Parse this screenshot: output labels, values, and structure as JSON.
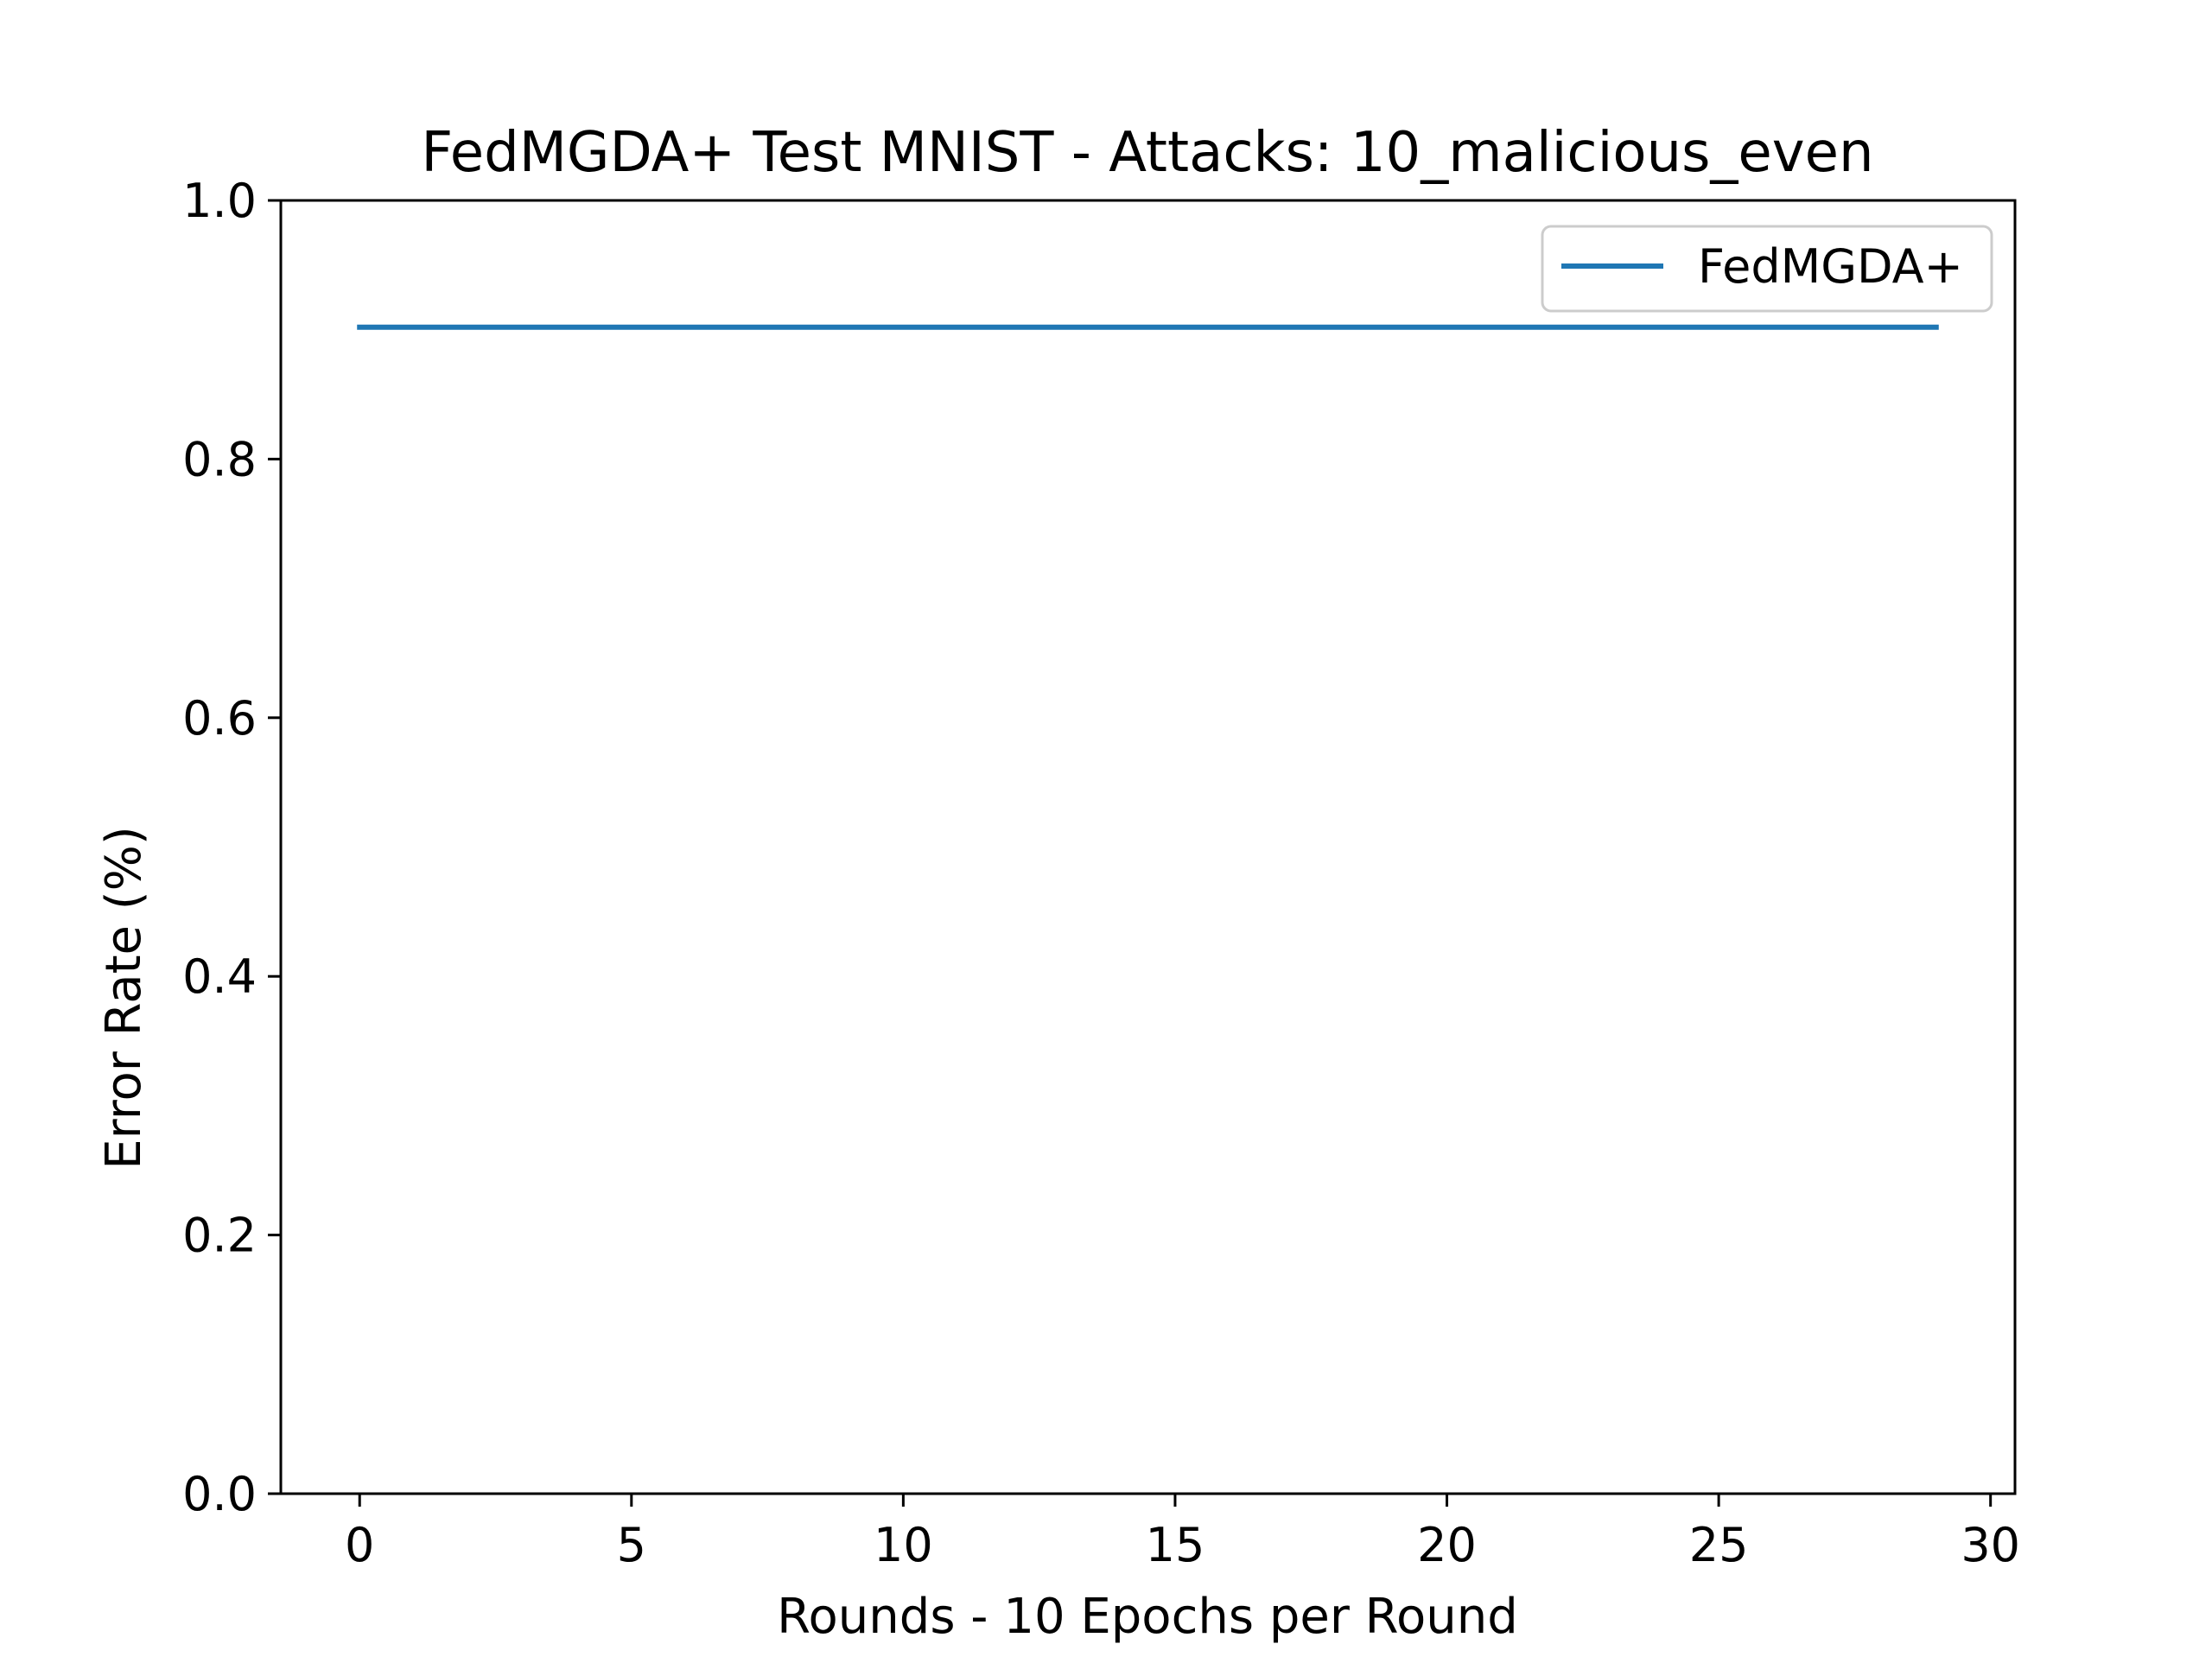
{
  "chart_data": {
    "type": "line",
    "title": "FedMGDA+ Test MNIST - Attacks: 10_malicious_even",
    "xlabel": "Rounds - 10 Epochs per Round",
    "ylabel": "Error Rate (%)",
    "xlim": [
      -1.45,
      30.45
    ],
    "ylim": [
      0.0,
      1.0
    ],
    "xticks": [
      0,
      5,
      10,
      15,
      20,
      25,
      30
    ],
    "xtick_labels": [
      "0",
      "5",
      "10",
      "15",
      "20",
      "25",
      "30"
    ],
    "yticks": [
      0.0,
      0.2,
      0.4,
      0.6,
      0.8,
      1.0
    ],
    "ytick_labels": [
      "0.0",
      "0.2",
      "0.4",
      "0.6",
      "0.8",
      "1.0"
    ],
    "grid": false,
    "legend_position": "top-right",
    "series": [
      {
        "name": "FedMGDA+",
        "color": "#1f77b4",
        "x": [
          0,
          1,
          2,
          3,
          4,
          5,
          6,
          7,
          8,
          9,
          10,
          11,
          12,
          13,
          14,
          15,
          16,
          17,
          18,
          19,
          20,
          21,
          22,
          23,
          24,
          25,
          26,
          27,
          28,
          29
        ],
        "values": [
          0.902,
          0.902,
          0.902,
          0.902,
          0.902,
          0.902,
          0.902,
          0.902,
          0.902,
          0.902,
          0.902,
          0.902,
          0.902,
          0.902,
          0.902,
          0.902,
          0.902,
          0.902,
          0.902,
          0.902,
          0.902,
          0.902,
          0.902,
          0.902,
          0.902,
          0.902,
          0.902,
          0.902,
          0.902,
          0.902
        ]
      }
    ]
  }
}
